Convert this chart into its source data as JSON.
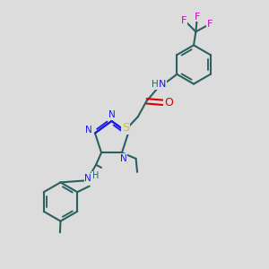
{
  "bg": "#dcdcdc",
  "bond": "#2a6060",
  "N": "#1a1aee",
  "O": "#dd0000",
  "S": "#cccc00",
  "F": "#cc00cc",
  "lw": 1.5,
  "fs": 8.0,
  "fig_w": 3.0,
  "fig_h": 3.0,
  "dpi": 100
}
